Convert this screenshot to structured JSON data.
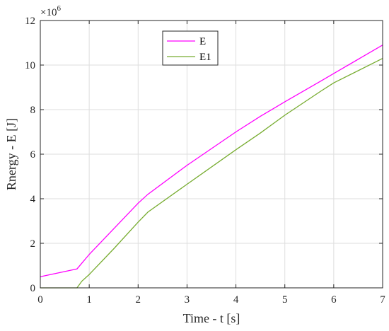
{
  "chart_data": {
    "type": "line",
    "xlabel": "Time - t [s]",
    "ylabel": "Rnergy - E [J]",
    "y_exponent_base": "×10",
    "y_exponent_power": "6",
    "xlim": [
      0,
      7
    ],
    "ylim": [
      0,
      12
    ],
    "x_ticks": [
      0,
      1,
      2,
      3,
      4,
      5,
      6,
      7
    ],
    "y_ticks": [
      0,
      2,
      4,
      6,
      8,
      10,
      12
    ],
    "grid": true,
    "legend_position": "top-center",
    "series": [
      {
        "name": "E",
        "color": "#ff00ff",
        "x": [
          0,
          0.75,
          1.0,
          1.5,
          2.0,
          2.2,
          3.0,
          4.0,
          4.5,
          5.0,
          5.75,
          6.0,
          7.0
        ],
        "y": [
          0.5,
          0.85,
          1.5,
          2.65,
          3.8,
          4.2,
          5.5,
          7.0,
          7.7,
          8.35,
          9.3,
          9.62,
          10.9
        ]
      },
      {
        "name": "E1",
        "color": "#77ac30",
        "x": [
          0,
          0.75,
          0.85,
          1.0,
          1.5,
          2.0,
          2.2,
          3.0,
          4.0,
          4.5,
          5.0,
          5.75,
          6.0,
          7.0
        ],
        "y": [
          0,
          0,
          0.3,
          0.6,
          1.75,
          2.95,
          3.4,
          4.65,
          6.2,
          6.95,
          7.75,
          8.85,
          9.2,
          10.3
        ]
      }
    ]
  }
}
